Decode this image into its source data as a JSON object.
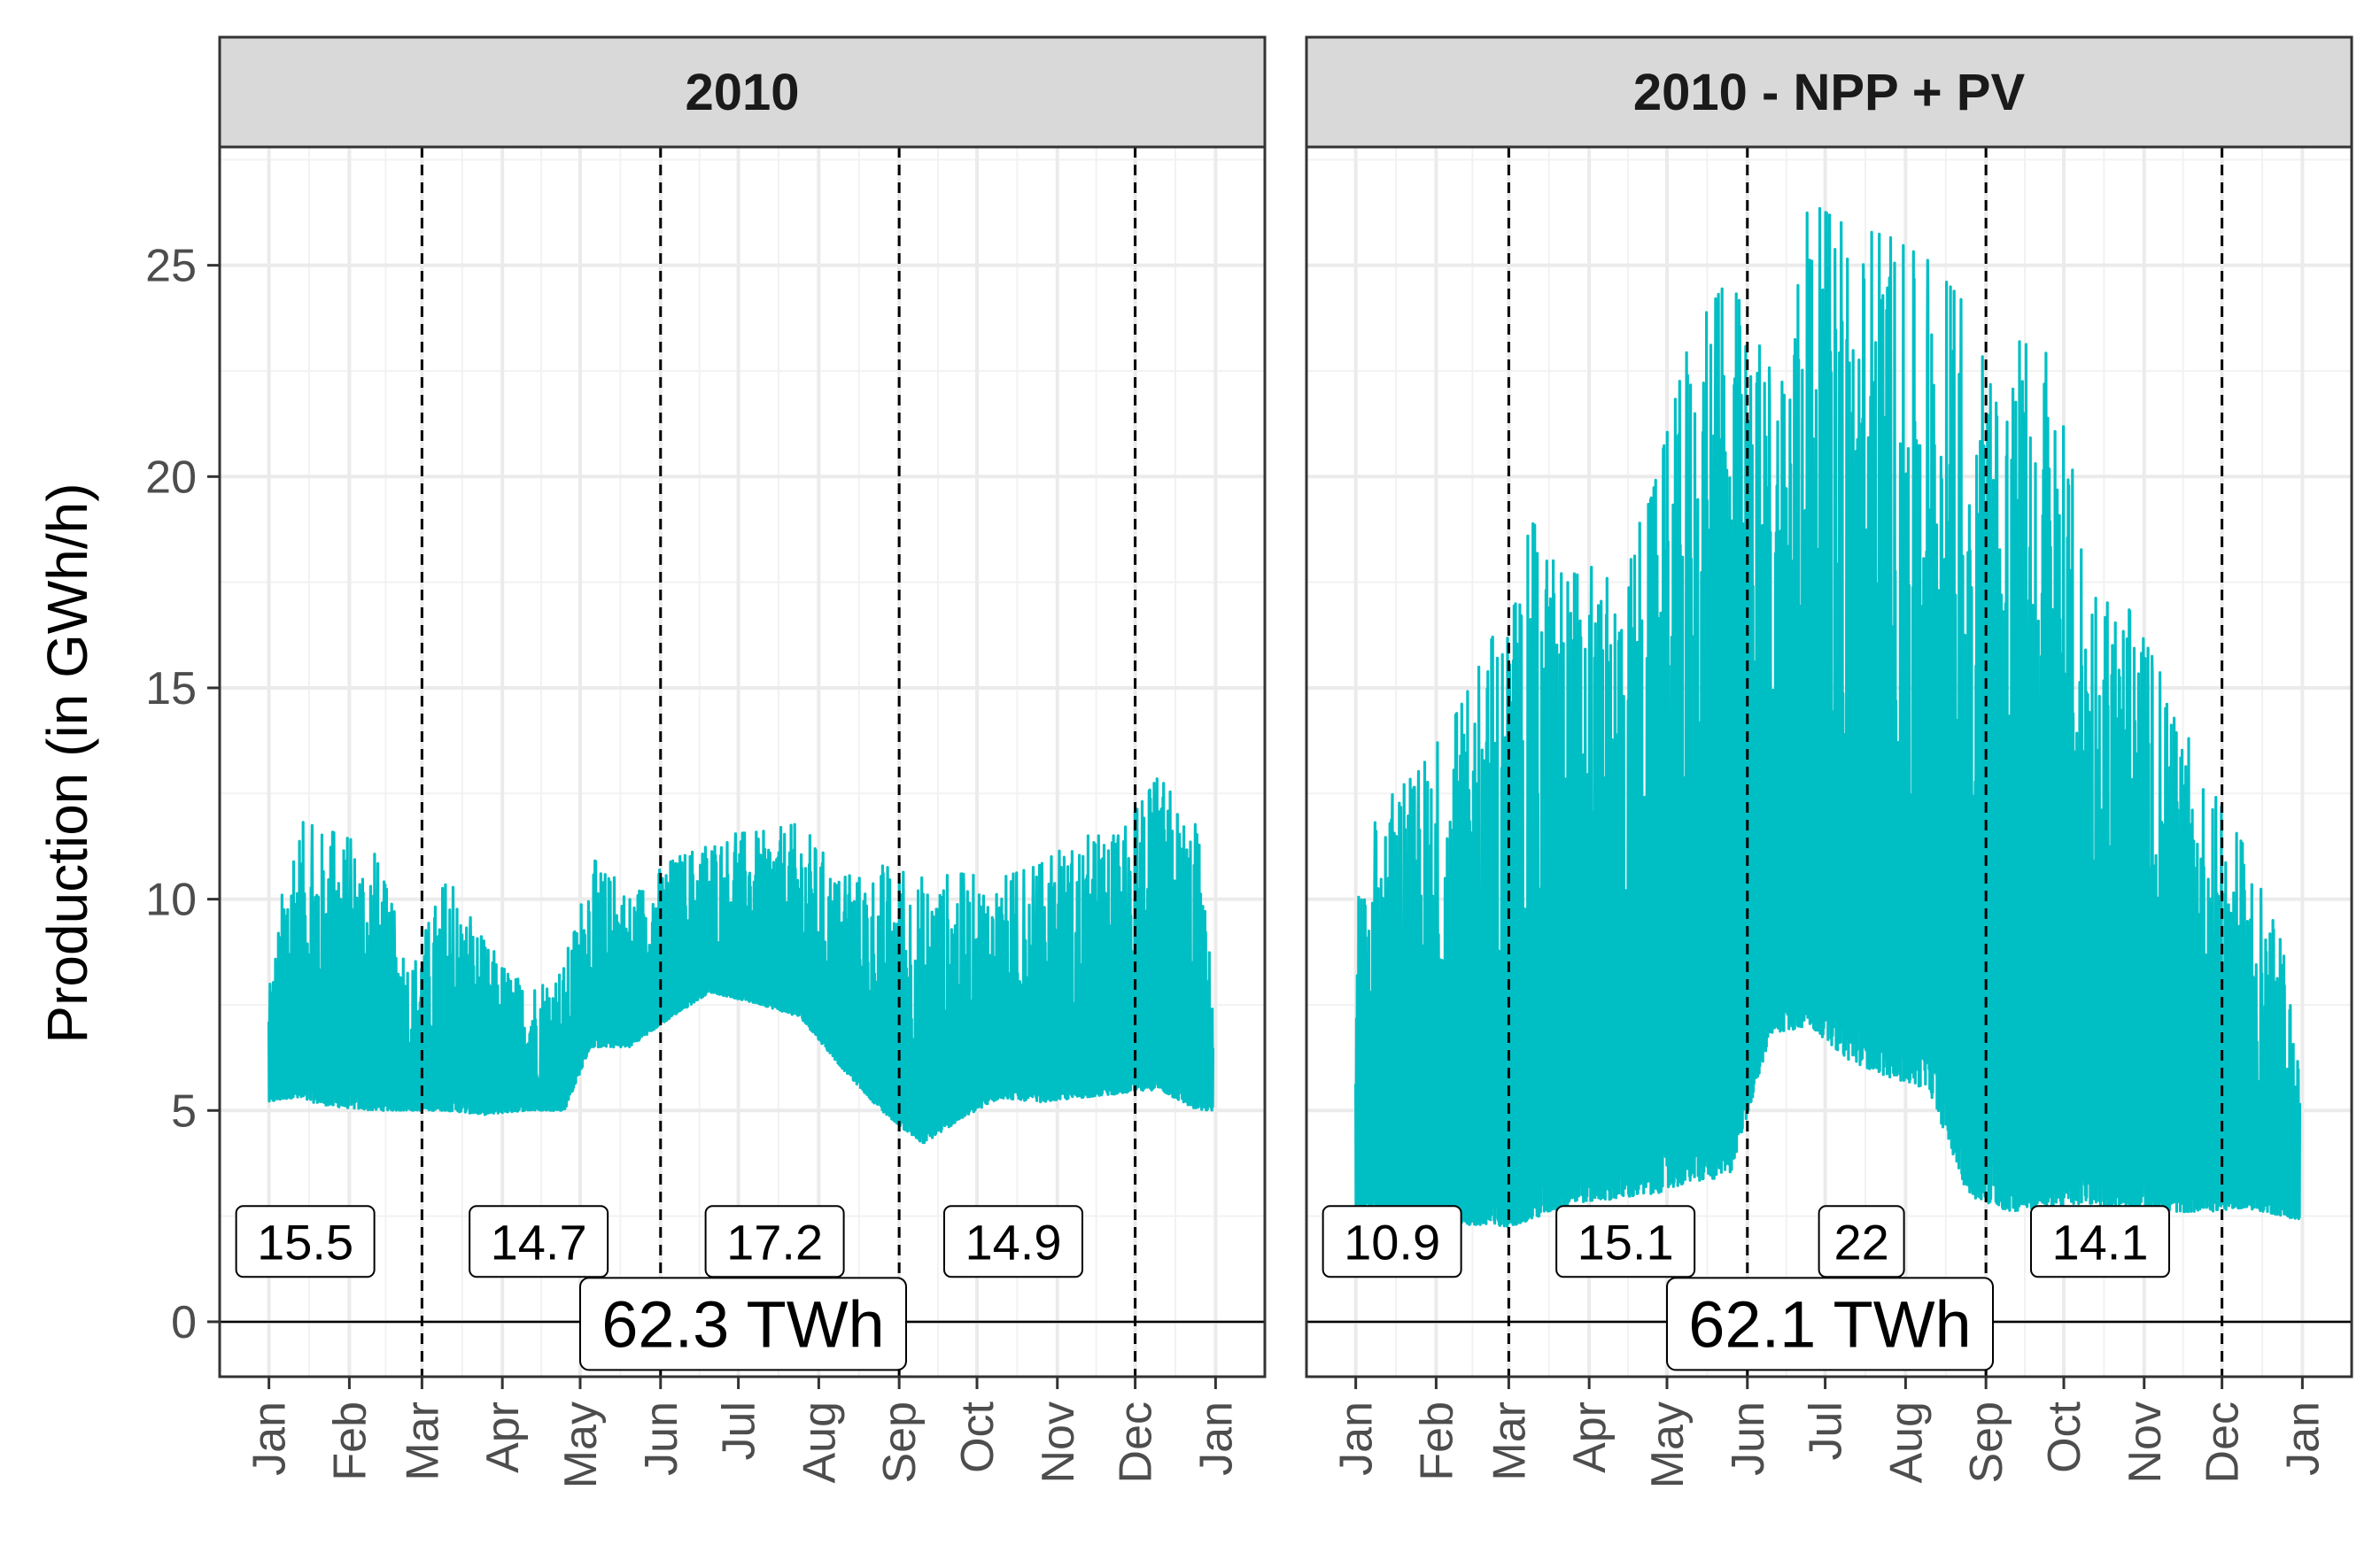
{
  "chart_data": {
    "type": "line",
    "ylabel": "Production (in GWh/h)",
    "ylim": [
      -1.3,
      27.8
    ],
    "yticks": [
      0,
      5,
      10,
      15,
      20,
      25
    ],
    "xlim": [
      "2009-12-13",
      "2011-01-20"
    ],
    "month_ticks": [
      "2010-01-01",
      "2010-02-01",
      "2010-03-01",
      "2010-04-01",
      "2010-05-01",
      "2010-06-01",
      "2010-07-01",
      "2010-08-01",
      "2010-09-01",
      "2010-10-01",
      "2010-11-01",
      "2010-12-01",
      "2011-01-01"
    ],
    "month_labels": [
      "Jan",
      "Feb",
      "Mar",
      "Apr",
      "May",
      "Jun",
      "Jul",
      "Aug",
      "Sep",
      "Oct",
      "Nov",
      "Dec",
      "Jan"
    ],
    "line_color": "#00BFC4",
    "grid": true,
    "panels": [
      {
        "title": "2010",
        "season_boundaries": [
          "2010-03-01",
          "2010-06-01",
          "2010-09-01",
          "2010-12-01"
        ],
        "season_totals": [
          {
            "value": "15.5",
            "date": "2010-01-15"
          },
          {
            "value": "14.7",
            "date": "2010-04-15"
          },
          {
            "value": "17.2",
            "date": "2010-07-15"
          },
          {
            "value": "14.9",
            "date": "2010-10-15"
          }
        ],
        "annual_total": "62.3 TWh",
        "series": [
          {
            "date": "2010-01-01",
            "min": 5.2,
            "max": 7.8
          },
          {
            "date": "2010-01-10",
            "min": 5.3,
            "max": 11.9
          },
          {
            "date": "2010-01-25",
            "min": 5.1,
            "max": 11.6
          },
          {
            "date": "2010-02-10",
            "min": 5.0,
            "max": 11.2
          },
          {
            "date": "2010-02-25",
            "min": 5.0,
            "max": 8.5
          },
          {
            "date": "2010-03-10",
            "min": 5.0,
            "max": 10.6
          },
          {
            "date": "2010-03-25",
            "min": 4.9,
            "max": 9.0
          },
          {
            "date": "2010-04-10",
            "min": 5.0,
            "max": 8.0
          },
          {
            "date": "2010-04-25",
            "min": 5.0,
            "max": 8.5
          },
          {
            "date": "2010-05-05",
            "min": 6.5,
            "max": 11.0
          },
          {
            "date": "2010-05-20",
            "min": 6.5,
            "max": 10.2
          },
          {
            "date": "2010-06-05",
            "min": 7.2,
            "max": 11.0
          },
          {
            "date": "2010-06-20",
            "min": 7.8,
            "max": 11.5
          },
          {
            "date": "2010-07-10",
            "min": 7.5,
            "max": 11.6
          },
          {
            "date": "2010-07-25",
            "min": 7.2,
            "max": 11.8
          },
          {
            "date": "2010-08-10",
            "min": 6.0,
            "max": 10.5
          },
          {
            "date": "2010-08-25",
            "min": 5.0,
            "max": 10.8
          },
          {
            "date": "2010-09-10",
            "min": 4.2,
            "max": 10.5
          },
          {
            "date": "2010-09-25",
            "min": 4.8,
            "max": 10.6
          },
          {
            "date": "2010-10-10",
            "min": 5.3,
            "max": 10.5
          },
          {
            "date": "2010-10-25",
            "min": 5.2,
            "max": 10.8
          },
          {
            "date": "2010-11-10",
            "min": 5.3,
            "max": 11.5
          },
          {
            "date": "2010-11-25",
            "min": 5.4,
            "max": 11.5
          },
          {
            "date": "2010-12-10",
            "min": 5.5,
            "max": 12.9
          },
          {
            "date": "2010-12-25",
            "min": 5.0,
            "max": 11.7
          },
          {
            "date": "2010-12-31",
            "min": 5.0,
            "max": 8.0
          }
        ]
      },
      {
        "title": "2010 - NPP + PV",
        "season_boundaries": [
          "2010-03-01",
          "2010-06-01",
          "2010-09-01",
          "2010-12-01"
        ],
        "season_totals": [
          {
            "value": "10.9",
            "date": "2010-01-15"
          },
          {
            "value": "15.1",
            "date": "2010-04-15"
          },
          {
            "value": "22",
            "date": "2010-07-15"
          },
          {
            "value": "14.1",
            "date": "2010-10-15"
          }
        ],
        "annual_total": "62.1 TWh",
        "series": [
          {
            "date": "2010-01-01",
            "min": 2.6,
            "max": 10.0
          },
          {
            "date": "2010-01-10",
            "min": 2.5,
            "max": 12.2
          },
          {
            "date": "2010-01-25",
            "min": 2.4,
            "max": 13.0
          },
          {
            "date": "2010-02-10",
            "min": 2.3,
            "max": 14.5
          },
          {
            "date": "2010-02-25",
            "min": 2.2,
            "max": 16.5
          },
          {
            "date": "2010-03-10",
            "min": 2.4,
            "max": 18.9
          },
          {
            "date": "2010-03-25",
            "min": 2.8,
            "max": 18.2
          },
          {
            "date": "2010-04-10",
            "min": 2.9,
            "max": 17.5
          },
          {
            "date": "2010-04-25",
            "min": 3.0,
            "max": 19.5
          },
          {
            "date": "2010-05-10",
            "min": 3.3,
            "max": 23.3
          },
          {
            "date": "2010-05-25",
            "min": 3.4,
            "max": 24.7
          },
          {
            "date": "2010-06-10",
            "min": 6.8,
            "max": 22.5
          },
          {
            "date": "2010-06-25",
            "min": 7.0,
            "max": 26.5
          },
          {
            "date": "2010-07-10",
            "min": 6.2,
            "max": 25.9
          },
          {
            "date": "2010-07-25",
            "min": 5.8,
            "max": 25.7
          },
          {
            "date": "2010-08-10",
            "min": 5.5,
            "max": 25.1
          },
          {
            "date": "2010-08-25",
            "min": 3.0,
            "max": 24.0
          },
          {
            "date": "2010-09-10",
            "min": 2.6,
            "max": 23.3
          },
          {
            "date": "2010-09-25",
            "min": 2.7,
            "max": 22.9
          },
          {
            "date": "2010-10-10",
            "min": 2.8,
            "max": 18.5
          },
          {
            "date": "2010-10-25",
            "min": 2.7,
            "max": 17.0
          },
          {
            "date": "2010-11-10",
            "min": 2.6,
            "max": 15.0
          },
          {
            "date": "2010-11-25",
            "min": 2.6,
            "max": 12.8
          },
          {
            "date": "2010-12-10",
            "min": 2.7,
            "max": 11.2
          },
          {
            "date": "2010-12-25",
            "min": 2.5,
            "max": 8.8
          },
          {
            "date": "2010-12-31",
            "min": 2.4,
            "max": 6.0
          }
        ]
      }
    ]
  }
}
